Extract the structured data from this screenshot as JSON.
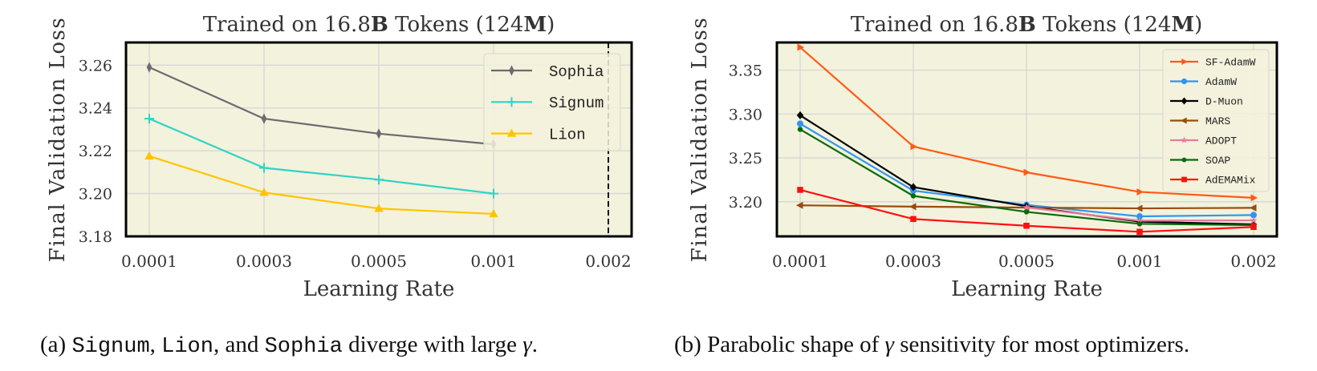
{
  "chart_data": [
    {
      "type": "line",
      "title": "Trained on 16.8B Tokens (124M)",
      "title_parts": [
        {
          "text": "Trained on 16.8",
          "bold": false
        },
        {
          "text": "B",
          "bold": true
        },
        {
          "text": " Tokens (124",
          "bold": false
        },
        {
          "text": "M",
          "bold": true
        },
        {
          "text": ")",
          "bold": false
        }
      ],
      "xlabel": "Learning Rate",
      "ylabel": "Final Validation Loss",
      "x": [
        "0.0001",
        "0.0003",
        "0.0005",
        "0.001",
        "0.002"
      ],
      "x_scale": "categorical",
      "ylim": [
        3.18,
        3.2706
      ],
      "yticks": [
        3.18,
        3.2,
        3.22,
        3.24,
        3.26
      ],
      "ytick_labels": [
        "3.18",
        "3.20",
        "3.22",
        "3.24",
        "3.26"
      ],
      "grid": true,
      "legend_position": "top-right",
      "annotations": [
        {
          "type": "vertical-dashed-line",
          "x": "0.002",
          "color": "#111111"
        }
      ],
      "series": [
        {
          "name": "Sophia",
          "color": "#6b6b70",
          "marker": "thin-diamond",
          "values": [
            3.259,
            3.235,
            3.228,
            3.223,
            null
          ]
        },
        {
          "name": "Signum",
          "color": "#2ed3c6",
          "marker": "plus",
          "values": [
            3.235,
            3.212,
            3.2065,
            3.2,
            null
          ]
        },
        {
          "name": "Lion",
          "color": "#ffc400",
          "marker": "triangle-up",
          "values": [
            3.2175,
            3.2005,
            3.193,
            3.1905,
            null
          ]
        }
      ]
    },
    {
      "type": "line",
      "title": "Trained on 16.8B Tokens (124M)",
      "title_parts": [
        {
          "text": "Trained on 16.8",
          "bold": false
        },
        {
          "text": "B",
          "bold": true
        },
        {
          "text": " Tokens (124",
          "bold": false
        },
        {
          "text": "M",
          "bold": true
        },
        {
          "text": ")",
          "bold": false
        }
      ],
      "xlabel": "Learning Rate",
      "ylabel": "Final Validation Loss",
      "x": [
        "0.0001",
        "0.0003",
        "0.0005",
        "0.001",
        "0.002"
      ],
      "x_scale": "categorical",
      "ylim": [
        3.1606,
        3.3815
      ],
      "yticks": [
        3.2,
        3.25,
        3.3,
        3.35
      ],
      "ytick_labels": [
        "3.20",
        "3.25",
        "3.30",
        "3.35"
      ],
      "grid": true,
      "legend_position": "top-right",
      "series": [
        {
          "name": "SF-AdamW",
          "color": "#ff5a14",
          "marker": "triangle-right",
          "values": [
            3.376,
            3.263,
            3.2335,
            3.2113,
            3.2045
          ]
        },
        {
          "name": "AdamW",
          "color": "#2e96f0",
          "marker": "circle",
          "values": [
            3.289,
            3.2127,
            3.1964,
            3.1834,
            3.1849
          ]
        },
        {
          "name": "D-Muon",
          "color": "#000000",
          "marker": "diamond",
          "values": [
            3.2985,
            3.2167,
            3.1949,
            3.1773,
            3.1743
          ]
        },
        {
          "name": "MARS",
          "color": "#9a4c0a",
          "marker": "triangle-left",
          "values": [
            3.196,
            3.1945,
            3.1934,
            3.1925,
            3.1931
          ]
        },
        {
          "name": "ADOPT",
          "color": "#e87aa0",
          "marker": "star",
          "values": [
            null,
            null,
            3.1935,
            3.1785,
            3.1788
          ]
        },
        {
          "name": "SOAP",
          "color": "#0b6a0b",
          "marker": "circle-small",
          "values": [
            3.2825,
            3.2067,
            3.1885,
            3.1749,
            3.1734
          ]
        },
        {
          "name": "AdEMAMix",
          "color": "#ff1010",
          "marker": "square",
          "values": [
            3.2136,
            3.1804,
            3.1727,
            3.1658,
            3.1713
          ]
        }
      ]
    }
  ],
  "captions": {
    "a": {
      "label": "(a)",
      "opt1": "Signum",
      "sep1": ",",
      "opt2": "Lion",
      "sep2": ", and",
      "opt3": "Sophia",
      "rest": "diverge with large",
      "symbol": "γ",
      "end": "."
    },
    "b": {
      "label": "(b)",
      "pre": "Parabolic shape of",
      "symbol": "γ",
      "post": "sensitivity for most optimizers."
    }
  },
  "style": {
    "plot_bg": "#f3f2dc",
    "grid_color": "#d6d6d6",
    "frame_color": "#000000",
    "text_color": "#333333"
  }
}
